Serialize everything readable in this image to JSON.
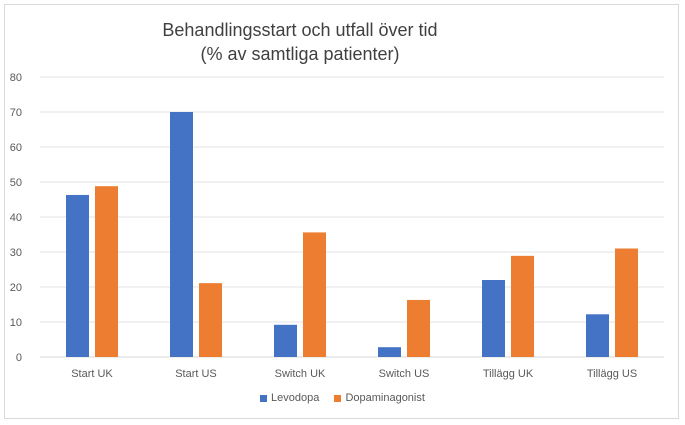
{
  "chart_data": {
    "type": "bar",
    "title": [
      "Behandlingsstart och utfall över tid",
      "(% av samtliga patienter)"
    ],
    "categories": [
      "Start UK",
      "Start US",
      "Switch UK",
      "Switch US",
      "Tillägg UK",
      "Tillägg US"
    ],
    "series": [
      {
        "name": "Levodopa",
        "color": "#4472C4",
        "values": [
          46.3,
          70,
          9.2,
          2.8,
          22,
          12.2
        ]
      },
      {
        "name": "Dopaminagonist",
        "color": "#ED7D31",
        "values": [
          48.8,
          21.1,
          35.6,
          16.3,
          28.9,
          31
        ]
      }
    ],
    "ylim": [
      0,
      80
    ],
    "yticks": [
      0,
      10,
      20,
      30,
      40,
      50,
      60,
      70,
      80
    ],
    "grid": true,
    "legend_position": "bottom",
    "xlabel": "",
    "ylabel": ""
  }
}
